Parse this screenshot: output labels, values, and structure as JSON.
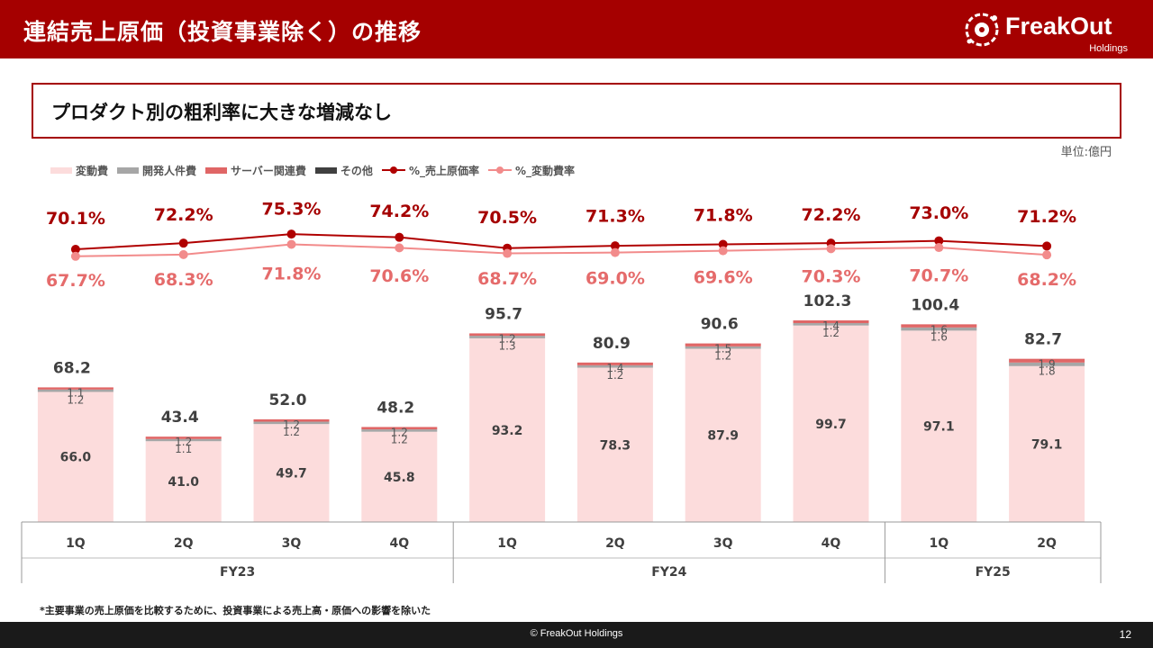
{
  "header": {
    "title": "連結売上原価（投資事業除く）の推移",
    "logo_text": "FreakOut",
    "logo_sub": "Holdings"
  },
  "subtitle": "プロダクト別の粗利率に大きな増減なし",
  "unit_label": "単位:億円",
  "footnote": "*主要事業の売上原価を比較するために、投資事業による売上高・原価への影響を除いた",
  "footer": {
    "copyright": "© FreakOut Holdings",
    "page": "12"
  },
  "colors": {
    "brand": "#a50000",
    "variable_cost": "#fcdcdc",
    "dev_personnel": "#a6a6a6",
    "server": "#e06666",
    "other": "#404040",
    "cogs_rate": "#b00000",
    "variable_rate": "#f28b8b"
  },
  "chart_data": {
    "type": "bar",
    "stacked": true,
    "categories": [
      "1Q",
      "2Q",
      "3Q",
      "4Q",
      "1Q",
      "2Q",
      "3Q",
      "4Q",
      "1Q",
      "2Q"
    ],
    "groups": [
      {
        "label": "FY23",
        "count": 4
      },
      {
        "label": "FY24",
        "count": 4
      },
      {
        "label": "FY25",
        "count": 2
      }
    ],
    "ylim": [
      0,
      120
    ],
    "series": [
      {
        "name": "変動費",
        "kind": "bar",
        "color": "#fcdcdc",
        "values": [
          66.0,
          41.0,
          49.7,
          45.8,
          93.2,
          78.3,
          87.9,
          99.7,
          97.1,
          79.1
        ]
      },
      {
        "name": "開発人件費",
        "kind": "bar",
        "color": "#a6a6a6",
        "values": [
          1.2,
          1.1,
          1.2,
          1.2,
          1.3,
          1.2,
          1.2,
          1.2,
          1.6,
          1.8
        ]
      },
      {
        "name": "サーバー関連費",
        "kind": "bar",
        "color": "#e06666",
        "values": [
          1.1,
          1.2,
          1.2,
          1.2,
          1.2,
          1.4,
          1.5,
          1.4,
          1.6,
          1.9
        ]
      },
      {
        "name": "その他",
        "kind": "bar",
        "color": "#404040",
        "values": [
          0,
          0,
          0,
          0,
          0,
          0,
          0,
          0,
          0,
          0
        ]
      },
      {
        "name": "%_売上原価率",
        "kind": "line",
        "color": "#b00000",
        "values": [
          70.1,
          72.2,
          75.3,
          74.2,
          70.5,
          71.3,
          71.8,
          72.2,
          73.0,
          71.2
        ]
      },
      {
        "name": "%_変動費率",
        "kind": "line",
        "color": "#f28b8b",
        "values": [
          67.7,
          68.3,
          71.8,
          70.6,
          68.7,
          69.0,
          69.6,
          70.3,
          70.7,
          68.2
        ]
      }
    ],
    "totals": [
      68.2,
      43.4,
      52.0,
      48.2,
      95.7,
      80.9,
      90.6,
      102.3,
      100.4,
      82.7
    ]
  }
}
